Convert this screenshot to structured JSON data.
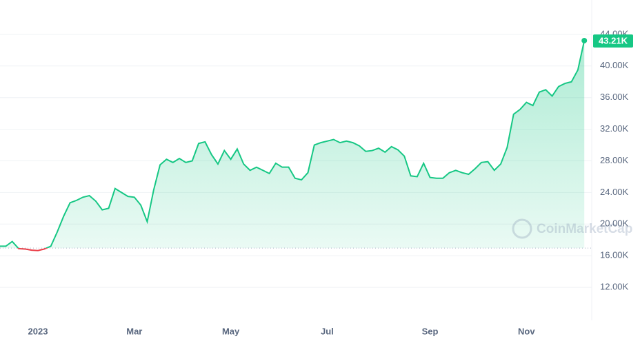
{
  "chart_data": {
    "type": "line",
    "categories": [
      null,
      null,
      null,
      null,
      null,
      null,
      "2023",
      null,
      null,
      null,
      null,
      null,
      null,
      null,
      null,
      null,
      null,
      null,
      null,
      null,
      null,
      "Mar",
      null,
      null,
      null,
      null,
      null,
      null,
      null,
      null,
      null,
      null,
      null,
      null,
      null,
      null,
      "May",
      null,
      null,
      null,
      null,
      null,
      null,
      null,
      null,
      null,
      null,
      null,
      null,
      null,
      null,
      "Jul",
      null,
      null,
      null,
      null,
      null,
      null,
      null,
      null,
      null,
      null,
      null,
      null,
      null,
      null,
      null,
      "Sep",
      null,
      null,
      null,
      null,
      null,
      null,
      null,
      null,
      null,
      null,
      null,
      null,
      null,
      null,
      "Nov",
      null,
      null,
      null,
      null,
      null,
      null,
      null,
      null,
      null
    ],
    "values": [
      17200,
      17200,
      17800,
      16900,
      16850,
      16700,
      16650,
      16850,
      17200,
      19000,
      21000,
      22700,
      23000,
      23400,
      23600,
      22900,
      21800,
      22000,
      24500,
      24000,
      23500,
      23400,
      22400,
      20300,
      24300,
      27500,
      28200,
      27800,
      28300,
      27800,
      28000,
      30200,
      30400,
      28800,
      27600,
      29300,
      28200,
      29500,
      27600,
      26800,
      27200,
      26800,
      26400,
      27700,
      27200,
      27200,
      25800,
      25600,
      26500,
      30000,
      30300,
      30500,
      30700,
      30300,
      30500,
      30300,
      29900,
      29200,
      29300,
      29600,
      29100,
      29800,
      29400,
      28600,
      26100,
      26000,
      27700,
      25900,
      25800,
      25800,
      26500,
      26800,
      26500,
      26300,
      27000,
      27800,
      27900,
      26800,
      27600,
      29700,
      33900,
      34500,
      35400,
      35000,
      36700,
      37000,
      36200,
      37400,
      37800,
      38000,
      39500,
      43210
    ],
    "value_labels": [
      null,
      null,
      null,
      null,
      null,
      null,
      null,
      null,
      null,
      null,
      null,
      null,
      null,
      null,
      null,
      null,
      null,
      null,
      null,
      null,
      null,
      null,
      null,
      null,
      null,
      null,
      null,
      null,
      null,
      null,
      null,
      null,
      null,
      null,
      null,
      null,
      null,
      null,
      null,
      null,
      null,
      null,
      null,
      null,
      null,
      null,
      null,
      null,
      null,
      null,
      null,
      null,
      null,
      null,
      null,
      null,
      null,
      null,
      null,
      null,
      null,
      null,
      null,
      null,
      null,
      null,
      null,
      null,
      null,
      null,
      null,
      null,
      null,
      null,
      null,
      null,
      null,
      null,
      null,
      null,
      null,
      null,
      null,
      null,
      null,
      null,
      null,
      null,
      null,
      null,
      null,
      "43.21K"
    ],
    "color": "#16c784",
    "down_color": "#ea3943",
    "baseline": 16960,
    "ylim": [
      8000,
      48000
    ],
    "yticks": [
      {
        "value": 12000,
        "label": "12.00K"
      },
      {
        "value": 16000,
        "label": "16.00K"
      },
      {
        "value": 20000,
        "label": "20.00K"
      },
      {
        "value": 24000,
        "label": "24.00K"
      },
      {
        "value": 28000,
        "label": "28.00K"
      },
      {
        "value": 32000,
        "label": "32.00K"
      },
      {
        "value": 36000,
        "label": "36.00K"
      },
      {
        "value": 40000,
        "label": "40.00K"
      },
      {
        "value": 44000,
        "label": "44.00K"
      }
    ],
    "grid": true,
    "watermark": "CoinMarketCap"
  }
}
